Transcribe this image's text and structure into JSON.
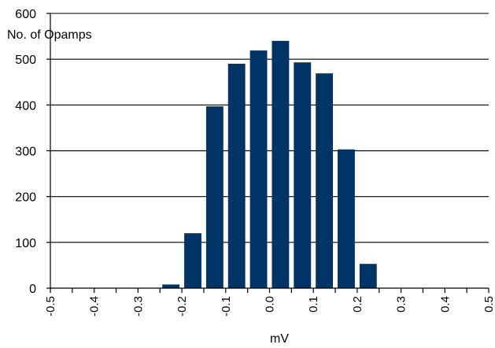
{
  "chart_data": {
    "type": "bar",
    "ylabel": "No. of Opamps",
    "xlabel": "mV",
    "ylim": [
      0,
      600
    ],
    "yticks": [
      "0",
      "100",
      "200",
      "300",
      "400",
      "500",
      "600"
    ],
    "xticks": [
      "-0.5",
      "-0.4",
      "-0.3",
      "-0.2",
      "-0.1",
      "0.0",
      "0.1",
      "0.2",
      "0.3",
      "0.4",
      "0.5"
    ],
    "xlim": [
      -0.5,
      0.5
    ],
    "bin_width": 0.05,
    "bars": [
      {
        "x": -0.225,
        "value": 8
      },
      {
        "x": -0.175,
        "value": 120
      },
      {
        "x": -0.125,
        "value": 397
      },
      {
        "x": -0.075,
        "value": 490
      },
      {
        "x": -0.025,
        "value": 519
      },
      {
        "x": 0.025,
        "value": 540
      },
      {
        "x": 0.075,
        "value": 493
      },
      {
        "x": 0.125,
        "value": 469
      },
      {
        "x": 0.175,
        "value": 303
      },
      {
        "x": 0.225,
        "value": 53
      }
    ],
    "bar_color": "#003366",
    "grid": true
  }
}
